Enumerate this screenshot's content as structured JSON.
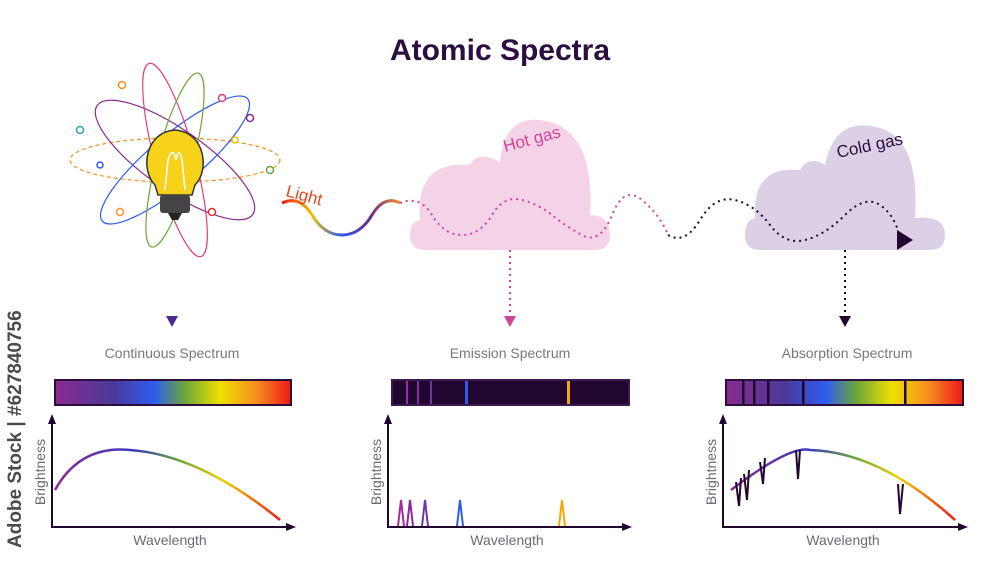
{
  "title": "Atomic Spectra",
  "labels": {
    "light": "Light",
    "hot_gas": "Hot gas",
    "cold_gas": "Cold gas"
  },
  "panels": [
    {
      "name": "Continuous Spectrum",
      "xlabel": "Wavelength",
      "ylabel": "Brightness"
    },
    {
      "name": "Emission Spectrum",
      "xlabel": "Wavelength",
      "ylabel": "Brightness"
    },
    {
      "name": "Absorption Spectrum",
      "xlabel": "Wavelength",
      "ylabel": "Brightness"
    }
  ],
  "watermark": "Adobe Stock | #627840756",
  "colors": {
    "title": "#2a0f3f",
    "hot_gas": "#f5d3e6",
    "hot_gas_text": "#d0459a",
    "cold_gas": "#dcd0e6",
    "bar_dark": "#21062f"
  }
}
